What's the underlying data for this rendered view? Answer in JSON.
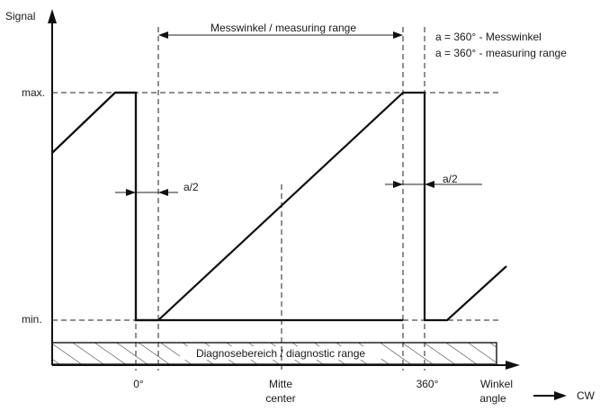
{
  "diagram": {
    "y_axis_label": "Signal",
    "max_label": "max.",
    "min_label": "min.",
    "measuring_range_label": "Messwinkel / measuring range",
    "note_line1": "a = 360° - Messwinkel",
    "note_line2": "a = 360° - measuring range",
    "half_a_left": "a/2",
    "half_a_right": "a/2",
    "diagnostic_label": "Diagnosebereich / diagnostic range",
    "zero_deg_label": "0°",
    "center_label_de": "Mitte",
    "center_label_en": "center",
    "deg360_label": "360°",
    "x_axis_label_de": "Winkel",
    "x_axis_label_en": "angle",
    "direction_label": "CW"
  }
}
